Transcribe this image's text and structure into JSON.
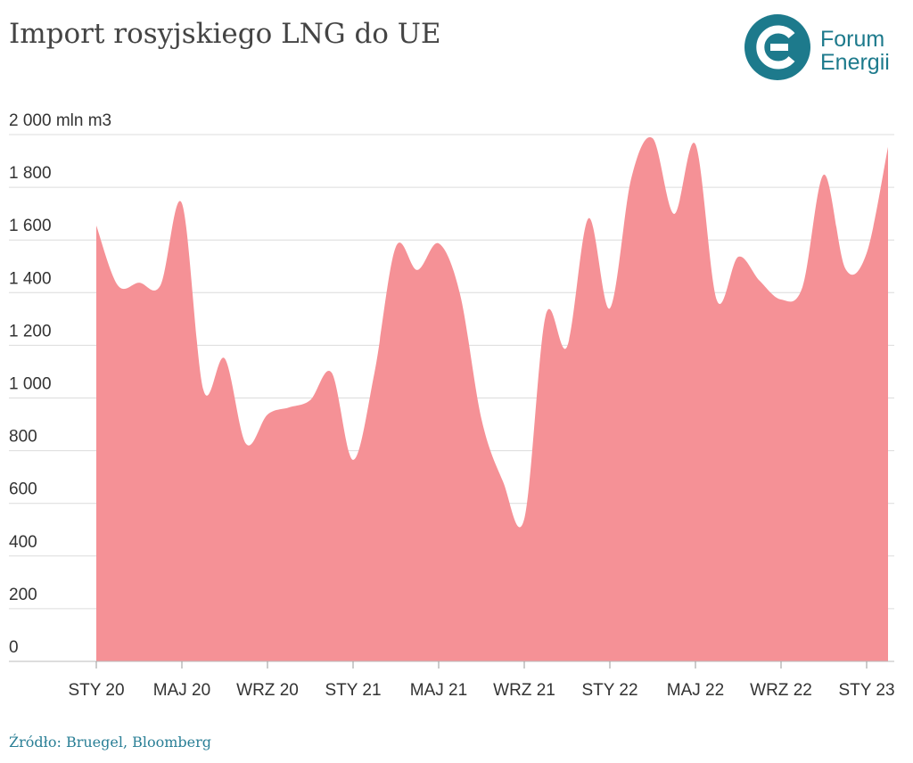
{
  "chart_data": {
    "type": "area",
    "title": "Import rosyjskiego LNG do UE",
    "source": "Źródło: Bruegel, Bloomberg",
    "logo": [
      "Forum",
      "Energii"
    ],
    "color": "#f59196",
    "grid": true,
    "categories": [
      "STY 20",
      null,
      null,
      null,
      "MAJ 20",
      null,
      null,
      null,
      "WRZ 20",
      null,
      null,
      null,
      "STY 21",
      null,
      null,
      null,
      "MAJ 21",
      null,
      null,
      null,
      "WRZ 21",
      null,
      null,
      null,
      "STY 22",
      null,
      null,
      null,
      "MAJ 22",
      null,
      null,
      null,
      "WRZ 22",
      null,
      null,
      null,
      "STY 23",
      null
    ],
    "values": [
      1655,
      1428,
      1438,
      1428,
      1739,
      1032,
      1150,
      826,
      937,
      964,
      992,
      1096,
      765,
      1096,
      1574,
      1486,
      1587,
      1394,
      920,
      684,
      541,
      1313,
      1195,
      1682,
      1340,
      1834,
      1986,
      1699,
      1963,
      1371,
      1536,
      1445,
      1374,
      1421,
      1848,
      1492,
      1550,
      1953
    ],
    "ylim": [
      0,
      2000
    ],
    "yticks": [
      0,
      200,
      400,
      600,
      800,
      {
        "value": 1000,
        "label": "1 000"
      },
      {
        "value": 1200,
        "label": "1 200"
      },
      {
        "value": 1400,
        "label": "1 400"
      },
      {
        "value": 1600,
        "label": "1 600"
      },
      {
        "value": 1800,
        "label": "1 800"
      },
      {
        "value": 2000,
        "label": "2 000 mln m3"
      }
    ]
  }
}
